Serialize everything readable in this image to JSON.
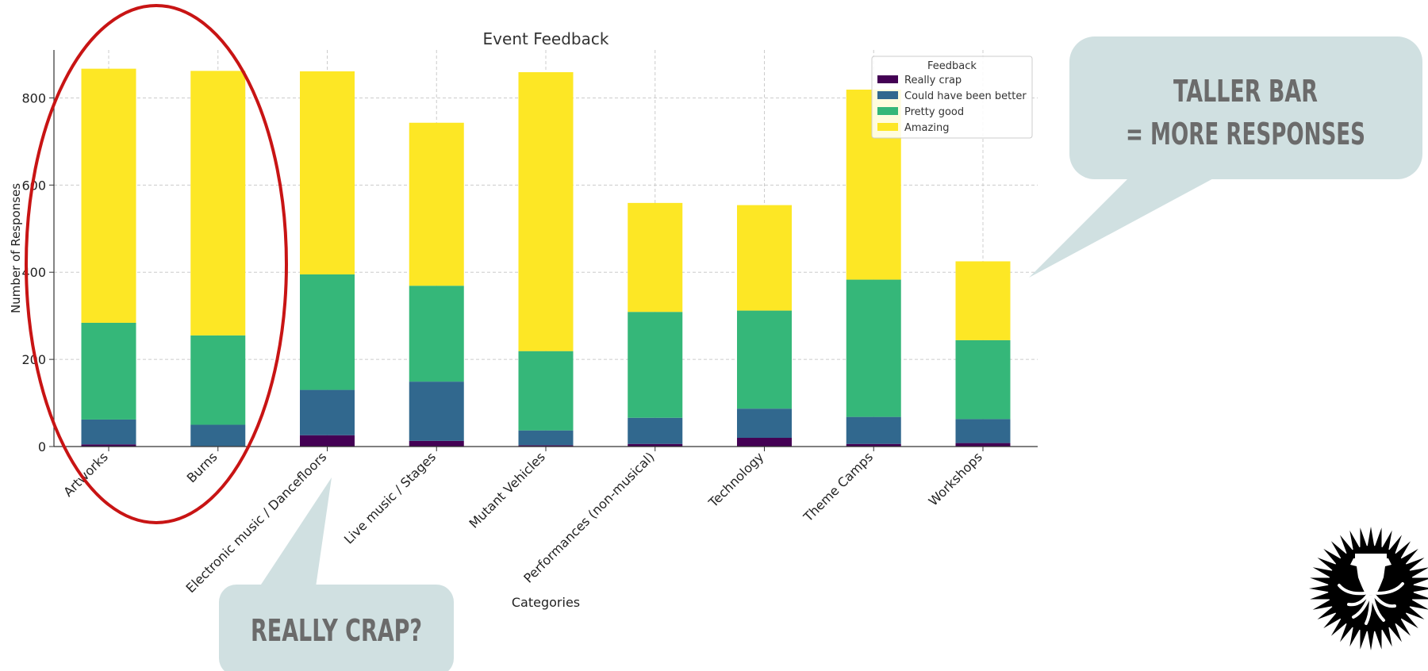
{
  "chart_data": {
    "type": "bar",
    "stacked": true,
    "title": "Event Feedback",
    "xlabel": "Categories",
    "ylabel": "Number of Responses",
    "ylim": [
      0,
      910
    ],
    "yticks": [
      0,
      200,
      400,
      600,
      800
    ],
    "grid": true,
    "legend": {
      "title": "Feedback",
      "placement": "top-right"
    },
    "categories": [
      "Artworks",
      "Burns",
      "Electronic music / Dancefloors",
      "Live music / Stages",
      "Mutant Vehicles",
      "Performances (non-musical)",
      "Technology",
      "Theme Camps",
      "Workshops"
    ],
    "series": [
      {
        "name": "Really crap",
        "color": "#440154",
        "values": [
          5,
          1,
          26,
          13,
          3,
          6,
          20,
          6,
          8
        ]
      },
      {
        "name": "Could have been better",
        "color": "#31688e",
        "values": [
          57,
          49,
          104,
          136,
          34,
          60,
          67,
          62,
          55
        ]
      },
      {
        "name": "Pretty good",
        "color": "#35b779",
        "values": [
          222,
          205,
          265,
          220,
          182,
          243,
          225,
          315,
          181
        ]
      },
      {
        "name": "Amazing",
        "color": "#fde725",
        "values": [
          583,
          607,
          466,
          374,
          640,
          250,
          242,
          436,
          181
        ]
      }
    ]
  },
  "annotations": {
    "taller_bar_line1": "TALLER BAR",
    "taller_bar_line2": "= MORE RESPONSES",
    "really_crap": "REALLY CRAP?",
    "callout_color": "#d0e0e1",
    "circle_color": "#c81414"
  },
  "logo": {
    "icon": "octopus-logo-icon"
  }
}
